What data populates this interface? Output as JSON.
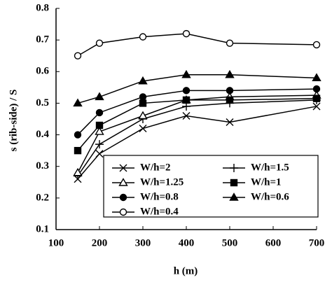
{
  "chart_data": {
    "type": "line",
    "xlabel": "h (m)",
    "ylabel": "s (rib-side) / S",
    "x": [
      150,
      200,
      300,
      400,
      500,
      700
    ],
    "xlim": [
      100,
      700
    ],
    "xticks": [
      100,
      200,
      300,
      400,
      500,
      600,
      700
    ],
    "ylim": [
      0.1,
      0.8
    ],
    "yticks": [
      0.1,
      0.2,
      0.3,
      0.4,
      0.5,
      0.6,
      0.7,
      0.8
    ],
    "grid": false,
    "legend": "lower right",
    "series": [
      {
        "name": "W/h=2",
        "color": "#000000",
        "marker": "x",
        "values": [
          0.26,
          0.34,
          0.42,
          0.46,
          0.44,
          0.49
        ]
      },
      {
        "name": "W/h=1.5",
        "color": "#000000",
        "marker": "+",
        "values": [
          0.27,
          0.37,
          0.45,
          0.49,
          0.5,
          0.51
        ]
      },
      {
        "name": "W/h=1.25",
        "color": "#000000",
        "marker": "open-triangle",
        "values": [
          0.28,
          0.41,
          0.46,
          0.51,
          0.52,
          0.525
        ]
      },
      {
        "name": "W/h=1",
        "color": "#000000",
        "marker": "square",
        "values": [
          0.35,
          0.43,
          0.5,
          0.51,
          0.51,
          0.515
        ]
      },
      {
        "name": "W/h=0.8",
        "color": "#000000",
        "marker": "circle",
        "values": [
          0.4,
          0.47,
          0.52,
          0.54,
          0.54,
          0.545
        ]
      },
      {
        "name": "W/h=0.6",
        "color": "#000000",
        "marker": "triangle",
        "values": [
          0.5,
          0.52,
          0.57,
          0.59,
          0.59,
          0.58
        ]
      },
      {
        "name": "W/h=0.4",
        "color": "#000000",
        "marker": "open-circle",
        "values": [
          0.65,
          0.69,
          0.71,
          0.72,
          0.69,
          0.685
        ]
      }
    ]
  }
}
